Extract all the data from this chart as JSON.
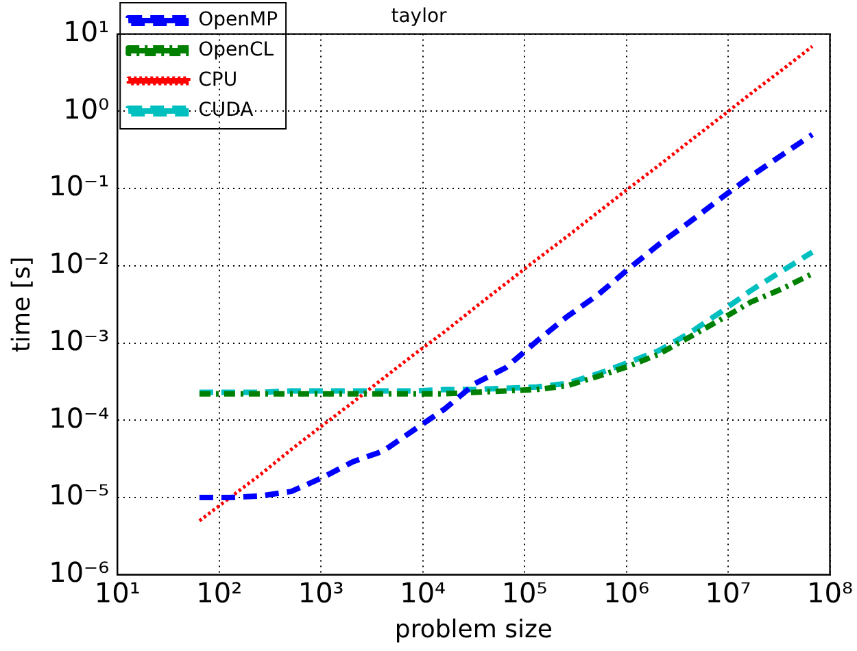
{
  "chart_data": {
    "type": "line",
    "title": "taylor",
    "xlabel": "problem size",
    "ylabel": "time [s]",
    "x": [
      64,
      128,
      256,
      512,
      1024,
      2048,
      4096,
      8192,
      16384,
      32768,
      65536,
      131072,
      262144,
      524288,
      1048576,
      2097152,
      4194304,
      8388608,
      16777216,
      33554432,
      67108864
    ],
    "series": [
      {
        "name": "OpenMP",
        "color": "#0000ff",
        "line_style": "dashed",
        "values": [
          1e-05,
          1e-05,
          1.05e-05,
          1.2e-05,
          1.8e-05,
          2.9e-05,
          4e-05,
          7.5e-05,
          0.00014,
          0.0003,
          0.00048,
          0.00105,
          0.0022,
          0.0042,
          0.0091,
          0.019,
          0.037,
          0.074,
          0.145,
          0.27,
          0.5
        ]
      },
      {
        "name": "OpenCL",
        "color": "#008000",
        "line_style": "dashdot",
        "values": [
          0.00022,
          0.00022,
          0.00022,
          0.00022,
          0.00022,
          0.00022,
          0.00022,
          0.00022,
          0.00022,
          0.00023,
          0.00024,
          0.00025,
          0.00028,
          0.00037,
          0.0005,
          0.00072,
          0.0012,
          0.002,
          0.0034,
          0.005,
          0.0079
        ]
      },
      {
        "name": "CPU",
        "color": "#ff0000",
        "line_style": "dotted",
        "values": [
          5e-06,
          1e-05,
          2e-05,
          4.2e-05,
          8.5e-05,
          0.00017,
          0.00035,
          0.00071,
          0.0014,
          0.0029,
          0.0059,
          0.012,
          0.024,
          0.049,
          0.1,
          0.2,
          0.41,
          0.83,
          1.7,
          3.4,
          6.9
        ]
      },
      {
        "name": "CUDA",
        "color": "#00bfbf",
        "line_style": "dashed",
        "values": [
          0.00023,
          0.00023,
          0.00023,
          0.00024,
          0.00024,
          0.00024,
          0.00024,
          0.00024,
          0.00025,
          0.00025,
          0.00026,
          0.00027,
          0.0003,
          0.0004,
          0.00056,
          0.0008,
          0.00135,
          0.0025,
          0.0048,
          0.0085,
          0.015
        ]
      }
    ],
    "log": "xy",
    "xlim": [
      10,
      100000000
    ],
    "ylim": [
      1e-06,
      10
    ],
    "xticks": [
      {
        "value": 10,
        "label": "10¹"
      },
      {
        "value": 100,
        "label": "10²"
      },
      {
        "value": 1000,
        "label": "10³"
      },
      {
        "value": 10000,
        "label": "10⁴"
      },
      {
        "value": 100000,
        "label": "10⁵"
      },
      {
        "value": 1000000,
        "label": "10⁶"
      },
      {
        "value": 10000000,
        "label": "10⁷"
      },
      {
        "value": 100000000,
        "label": "10⁸"
      }
    ],
    "yticks": [
      {
        "value": 1e-06,
        "label": "10⁻⁶"
      },
      {
        "value": 1e-05,
        "label": "10⁻⁵"
      },
      {
        "value": 0.0001,
        "label": "10⁻⁴"
      },
      {
        "value": 0.001,
        "label": "10⁻³"
      },
      {
        "value": 0.01,
        "label": "10⁻²"
      },
      {
        "value": 0.1,
        "label": "10⁻¹"
      },
      {
        "value": 1,
        "label": "10⁰"
      },
      {
        "value": 10,
        "label": "10¹"
      }
    ],
    "grid": true,
    "legend": "top left",
    "marker": "none"
  }
}
